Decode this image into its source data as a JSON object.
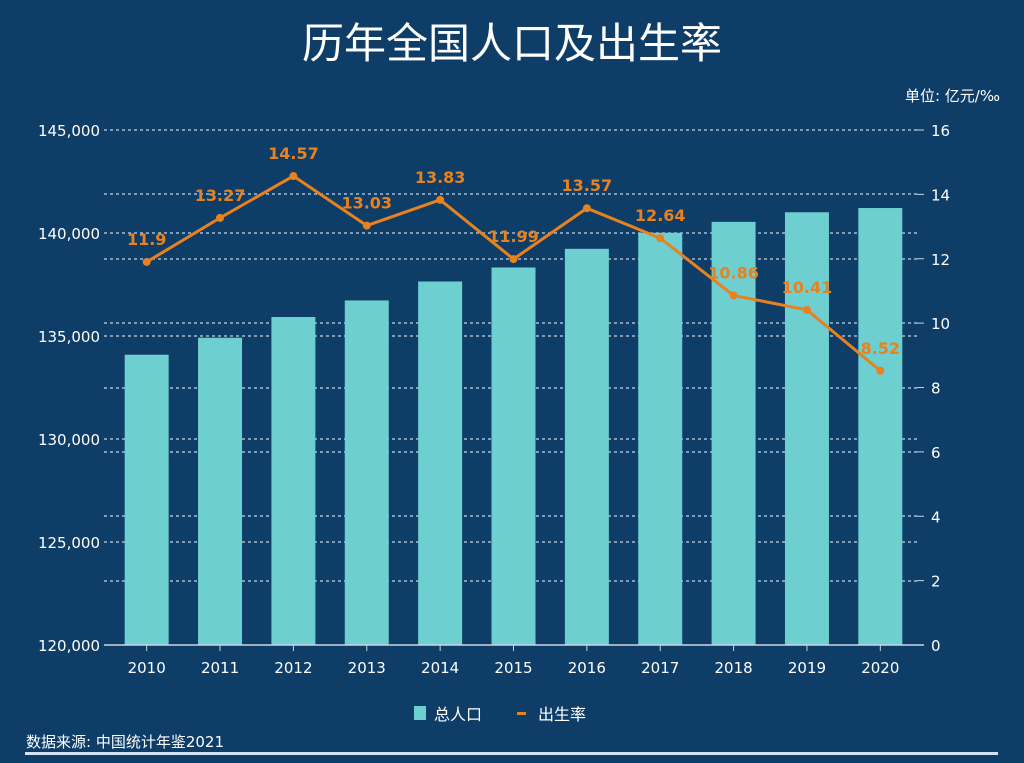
{
  "colors": {
    "background": "#0e3d68",
    "bar": "#6dcfd0",
    "line": "#e8821e",
    "text": "#ffffff",
    "grid": "#c8d6e4"
  },
  "source": "数据来源: 中国统计年鉴2021",
  "chart_data": {
    "type": "bar+line",
    "title": "历年全国人口及出生率",
    "unit_label": "单位: 亿元/‰",
    "categories": [
      "2010",
      "2011",
      "2012",
      "2013",
      "2014",
      "2015",
      "2016",
      "2017",
      "2018",
      "2019",
      "2020"
    ],
    "series": [
      {
        "name": "总人口",
        "type": "bar",
        "axis": "left",
        "values": [
          134091,
          134916,
          135922,
          136726,
          137646,
          138326,
          139232,
          140011,
          140541,
          141008,
          141212
        ]
      },
      {
        "name": "出生率",
        "type": "line",
        "axis": "right",
        "values": [
          11.9,
          13.27,
          14.57,
          13.03,
          13.83,
          11.99,
          13.57,
          12.64,
          10.86,
          10.41,
          8.52
        ],
        "labels": [
          "11.9",
          "13.27",
          "14.57",
          "13.03",
          "13.83",
          "11.99",
          "13.57",
          "12.64",
          "10.86",
          "10.41",
          "8.52"
        ]
      }
    ],
    "y_left": {
      "range": [
        120000,
        145000
      ],
      "ticks": [
        "120,000",
        "125,000",
        "130,000",
        "135,000",
        "140,000",
        "145,000"
      ]
    },
    "y_right": {
      "range": [
        0,
        16
      ],
      "ticks": [
        "0",
        "2",
        "4",
        "6",
        "8",
        "10",
        "12",
        "14",
        "16"
      ]
    },
    "grid": true,
    "legend": {
      "position": "bottom",
      "items": [
        "总人口",
        "出生率"
      ]
    }
  }
}
